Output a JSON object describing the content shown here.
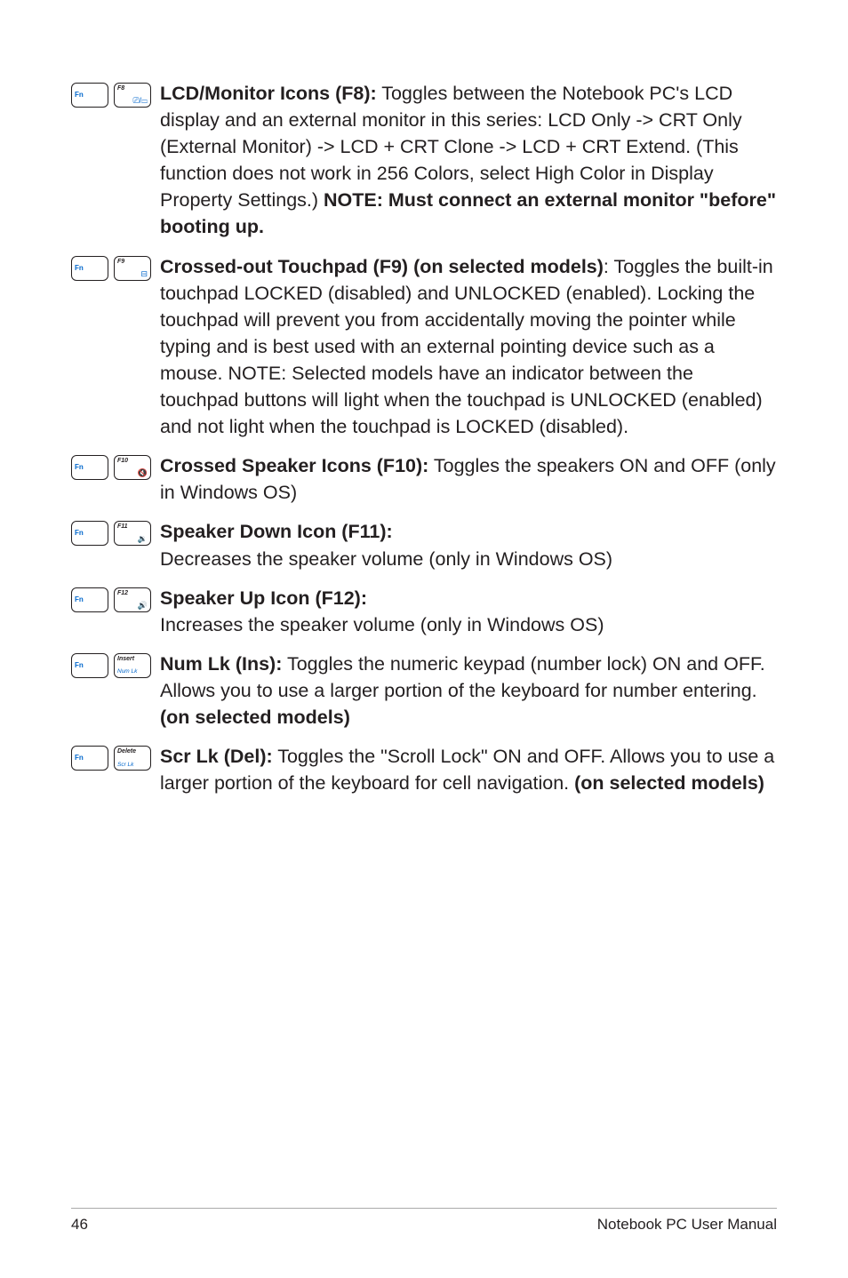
{
  "entries": [
    {
      "fn_label": "Fn",
      "key_top": "F8",
      "key_icon": "⎚/▭",
      "bold": "LCD/Monitor Icons (F8):",
      "text": " Toggles between the Notebook PC's LCD display and an external monitor in this series: LCD Only -> CRT Only (External Monitor) -> LCD + CRT Clone -> LCD + CRT Extend. (This function does not work in 256 Colors, select High Color in Display Property Settings.) ",
      "bold_trail": "NOTE: Must connect an external monitor \"before\" booting up."
    },
    {
      "fn_label": "Fn",
      "key_top": "F9",
      "key_icon": "⊟",
      "bold": "Crossed-out Touchpad (F9) (on selected models)",
      "text": ": Toggles the built-in touchpad LOCKED (disabled) and UNLOCKED (enabled). Locking the touchpad will prevent you from accidentally moving the pointer while typing and is best used with an external pointing device such as a mouse. NOTE: Selected models have an indicator between the touchpad buttons will light when the touchpad is UNLOCKED (enabled) and not light when the touchpad is LOCKED (disabled).",
      "bold_trail": ""
    },
    {
      "fn_label": "Fn",
      "key_top": "F10",
      "key_icon": "🔇",
      "bold": "Crossed Speaker Icons (F10):",
      "text": " Toggles the speakers ON and OFF (only in Windows OS)",
      "bold_trail": ""
    },
    {
      "fn_label": "Fn",
      "key_top": "F11",
      "key_icon": "🔉",
      "bold": "Speaker Down Icon (F11):",
      "text": "",
      "newline_text": "Decreases the speaker volume (only in Windows OS)",
      "bold_trail": ""
    },
    {
      "fn_label": "Fn",
      "key_top": "F12",
      "key_icon": "🔊",
      "bold": "Speaker Up Icon (F12):",
      "text": "",
      "newline_text": "Increases the speaker volume (only in Windows OS)",
      "bold_trail": ""
    },
    {
      "fn_label": "Fn",
      "key_top": "Insert",
      "key_bottom": "Num Lk",
      "bold": "Num Lk (Ins):",
      "text": " Toggles the numeric keypad (number lock) ON and OFF. Allows you to use a larger portion of the keyboard for number entering. ",
      "bold_trail": "(on selected models)"
    },
    {
      "fn_label": "Fn",
      "key_top": "Delete",
      "key_bottom": "Scr Lk",
      "bold": "Scr Lk (Del):",
      "text": " Toggles the \"Scroll Lock\" ON and OFF. Allows you to use a larger portion of the keyboard for cell navigation. ",
      "bold_trail": "(on selected models)"
    }
  ],
  "footer": {
    "page": "46",
    "title": "Notebook PC User Manual"
  }
}
